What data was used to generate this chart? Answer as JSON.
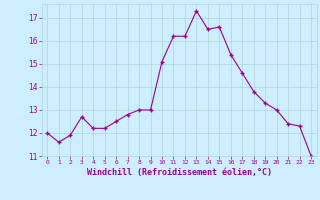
{
  "x": [
    0,
    1,
    2,
    3,
    4,
    5,
    6,
    7,
    8,
    9,
    10,
    11,
    12,
    13,
    14,
    15,
    16,
    17,
    18,
    19,
    20,
    21,
    22,
    23
  ],
  "y": [
    12.0,
    11.6,
    11.9,
    12.7,
    12.2,
    12.2,
    12.5,
    12.8,
    13.0,
    13.0,
    15.1,
    16.2,
    16.2,
    17.3,
    16.5,
    16.6,
    15.4,
    14.6,
    13.8,
    13.3,
    13.0,
    12.4,
    12.3,
    11.0
  ],
  "line_color": "#990099",
  "marker": "P",
  "marker_size": 2.5,
  "bg_color": "#cceeff",
  "grid_color": "#b0d4d4",
  "xlabel": "Windchill (Refroidissement éolien,°C)",
  "xlabel_color": "#990099",
  "tick_color": "#990099",
  "ylim": [
    11,
    17.6
  ],
  "yticks": [
    11,
    12,
    13,
    14,
    15,
    16,
    17
  ],
  "xticks": [
    0,
    1,
    2,
    3,
    4,
    5,
    6,
    7,
    8,
    9,
    10,
    11,
    12,
    13,
    14,
    15,
    16,
    17,
    18,
    19,
    20,
    21,
    22,
    23
  ],
  "xlim": [
    -0.5,
    23.5
  ]
}
